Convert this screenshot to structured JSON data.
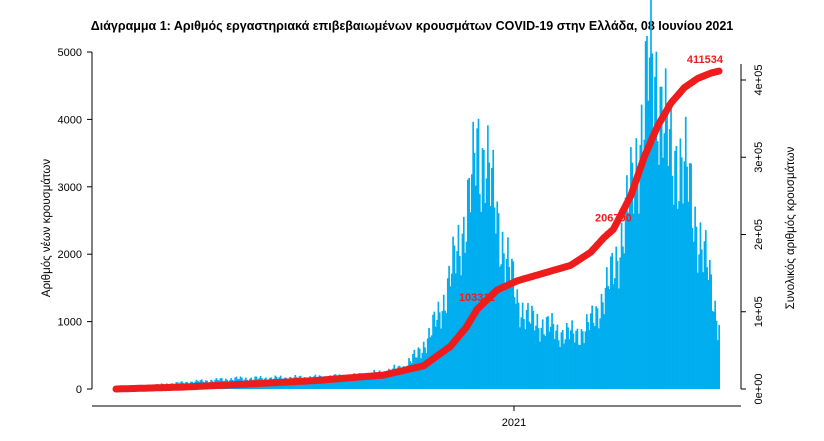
{
  "chart_data": {
    "type": "bar",
    "title": "Διάγραμμα 1: Αριθμός εργαστηριακά επιβεβαιωμένων κρουσμάτων COVID-19 στην Ελλάδα, 08 Ιουνίου 2021",
    "ylabel": "Αριθμός νέων κρουσμάτων",
    "y2label": "Συνολικός αριθμός κρουσμάτων",
    "x_tick_label": "2021",
    "ylim": [
      0,
      5000
    ],
    "y_ticks": [
      "0",
      "1000",
      "2000",
      "3000",
      "4000",
      "5000"
    ],
    "y2lim": [
      0,
      400000
    ],
    "y2_ticks": [
      "0e+00",
      "1e+05",
      "2e+05",
      "3e+05",
      "4e+05"
    ],
    "grid": false,
    "colors": {
      "bars": "#00aeef",
      "cumulative": "#ee1c1c",
      "annotation": "#ee1c1c"
    },
    "series": [
      {
        "name": "",
        "kind": "bar",
        "anchors": [
          [
            0,
            30
          ],
          [
            30,
            60
          ],
          [
            60,
            110
          ],
          [
            90,
            150
          ],
          [
            120,
            160
          ],
          [
            150,
            170
          ],
          [
            180,
            190
          ],
          [
            200,
            240
          ],
          [
            215,
            320
          ],
          [
            225,
            500
          ],
          [
            235,
            800
          ],
          [
            245,
            1300
          ],
          [
            255,
            2000
          ],
          [
            262,
            2600
          ],
          [
            267,
            3100
          ],
          [
            270,
            3608
          ],
          [
            273,
            3400
          ],
          [
            276,
            3562
          ],
          [
            280,
            3000
          ],
          [
            285,
            2500
          ],
          [
            290,
            2100
          ],
          [
            295,
            1700
          ],
          [
            300,
            1300
          ],
          [
            305,
            1150
          ],
          [
            310,
            1000
          ],
          [
            320,
            950
          ],
          [
            330,
            850
          ],
          [
            340,
            800
          ],
          [
            350,
            850
          ],
          [
            356,
            1000
          ],
          [
            362,
            1250
          ],
          [
            368,
            1500
          ],
          [
            374,
            1900
          ],
          [
            380,
            2400
          ],
          [
            386,
            3000
          ],
          [
            392,
            3700
          ],
          [
            396,
            4300
          ],
          [
            400,
            4853
          ],
          [
            404,
            4600
          ],
          [
            408,
            4200
          ],
          [
            412,
            3700
          ],
          [
            416,
            3300
          ],
          [
            420,
            3500
          ],
          [
            426,
            3200
          ],
          [
            432,
            2600
          ],
          [
            437,
            2200
          ],
          [
            442,
            1800
          ],
          [
            446,
            1400
          ],
          [
            450,
            1000
          ]
        ]
      },
      {
        "name": "",
        "kind": "line",
        "anchors": [
          [
            0,
            0
          ],
          [
            50,
            2500
          ],
          [
            100,
            6500
          ],
          [
            150,
            11000
          ],
          [
            200,
            18000
          ],
          [
            230,
            30000
          ],
          [
            250,
            55000
          ],
          [
            262,
            80000
          ],
          [
            270,
            103000
          ],
          [
            285,
            128000
          ],
          [
            300,
            140000
          ],
          [
            320,
            150000
          ],
          [
            340,
            160000
          ],
          [
            355,
            177000
          ],
          [
            365,
            196000
          ],
          [
            372,
            206700
          ],
          [
            385,
            250000
          ],
          [
            395,
            300000
          ],
          [
            405,
            340000
          ],
          [
            415,
            370000
          ],
          [
            425,
            390000
          ],
          [
            435,
            402000
          ],
          [
            445,
            409000
          ],
          [
            451,
            411534
          ]
        ]
      }
    ],
    "annotations": [
      {
        "label": "103311",
        "x": 270,
        "y": 103311
      },
      {
        "label": "206700",
        "x": 372,
        "y": 206700
      },
      {
        "label": "411534",
        "x": 451,
        "y": 411534
      }
    ]
  }
}
